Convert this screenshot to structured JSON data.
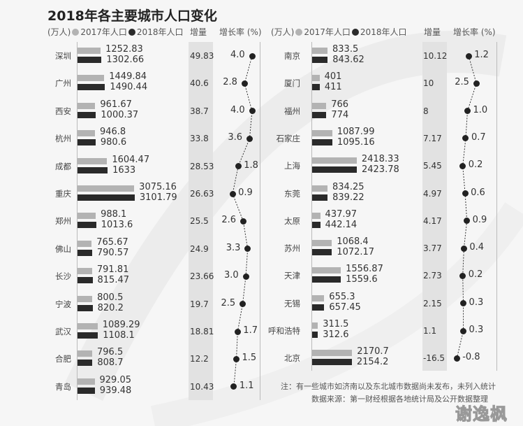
{
  "chart_data": {
    "type": "bar",
    "title": "2018年各主要城市人口变化",
    "unit_label": "(万人)",
    "legend": {
      "s2017": "2017年人口",
      "s2018": "2018年人口",
      "position": "top"
    },
    "column_headers": {
      "increase": "增量",
      "growth_rate": "增长率 (%)"
    },
    "colors": {
      "s2017": "#b3b3b3",
      "s2018": "#2a2a2a",
      "band": "#e2e2e2"
    },
    "panels": [
      {
        "rows": [
          {
            "city": "深圳",
            "p2017": "1252.83",
            "p2018": "1302.66",
            "increase": "49.83",
            "growth": "4.0"
          },
          {
            "city": "广州",
            "p2017": "1449.84",
            "p2018": "1490.44",
            "increase": "40.6",
            "growth": "2.8"
          },
          {
            "city": "西安",
            "p2017": "961.67",
            "p2018": "1000.37",
            "increase": "38.7",
            "growth": "4.0"
          },
          {
            "city": "杭州",
            "p2017": "946.8",
            "p2018": "980.6",
            "increase": "33.8",
            "growth": "3.6"
          },
          {
            "city": "成都",
            "p2017": "1604.47",
            "p2018": "1633",
            "increase": "28.53",
            "growth": "1.8"
          },
          {
            "city": "重庆",
            "p2017": "3075.16",
            "p2018": "3101.79",
            "increase": "26.63",
            "growth": "0.9"
          },
          {
            "city": "郑州",
            "p2017": "988.1",
            "p2018": "1013.6",
            "increase": "25.5",
            "growth": "2.6"
          },
          {
            "city": "佛山",
            "p2017": "765.67",
            "p2018": "790.57",
            "increase": "24.9",
            "growth": "3.3"
          },
          {
            "city": "长沙",
            "p2017": "791.81",
            "p2018": "815.47",
            "increase": "23.66",
            "growth": "3.0"
          },
          {
            "city": "宁波",
            "p2017": "800.5",
            "p2018": "820.2",
            "increase": "19.7",
            "growth": "2.5"
          },
          {
            "city": "武汉",
            "p2017": "1089.29",
            "p2018": "1108.1",
            "increase": "18.81",
            "growth": "1.7"
          },
          {
            "city": "合肥",
            "p2017": "796.5",
            "p2018": "808.7",
            "increase": "12.2",
            "growth": "1.5"
          },
          {
            "city": "青岛",
            "p2017": "929.05",
            "p2018": "939.48",
            "increase": "10.43",
            "growth": "1.1"
          }
        ]
      },
      {
        "rows": [
          {
            "city": "南京",
            "p2017": "833.5",
            "p2018": "843.62",
            "increase": "10.12",
            "growth": "1.2"
          },
          {
            "city": "厦门",
            "p2017": "401",
            "p2018": "411",
            "increase": "10",
            "growth": "2.5"
          },
          {
            "city": "福州",
            "p2017": "766",
            "p2018": "774",
            "increase": "8",
            "growth": "1.0"
          },
          {
            "city": "石家庄",
            "p2017": "1087.99",
            "p2018": "1095.16",
            "increase": "7.17",
            "growth": "0.7"
          },
          {
            "city": "上海",
            "p2017": "2418.33",
            "p2018": "2423.78",
            "increase": "5.45",
            "growth": "0.2"
          },
          {
            "city": "东莞",
            "p2017": "834.25",
            "p2018": "839.22",
            "increase": "4.97",
            "growth": "0.6"
          },
          {
            "city": "太原",
            "p2017": "437.97",
            "p2018": "442.14",
            "increase": "4.17",
            "growth": "0.9"
          },
          {
            "city": "苏州",
            "p2017": "1068.4",
            "p2018": "1072.17",
            "increase": "3.77",
            "growth": "0.4"
          },
          {
            "city": "天津",
            "p2017": "1556.87",
            "p2018": "1559.6",
            "increase": "2.73",
            "growth": "0.2"
          },
          {
            "city": "无锡",
            "p2017": "655.3",
            "p2018": "657.45",
            "increase": "2.15",
            "growth": "0.3"
          },
          {
            "city": "呼和浩特",
            "p2017": "311.5",
            "p2018": "312.6",
            "increase": "1.1",
            "growth": "0.3"
          },
          {
            "city": "北京",
            "p2017": "2170.7",
            "p2018": "2154.2",
            "increase": "-16.5",
            "growth": "-0.8"
          }
        ]
      }
    ],
    "note": "注：有一些城市如济南以及东北城市数据尚未发布，未列入统计",
    "source": "数据来源：第一财经根据各地统计局及公开数据整理"
  },
  "watermark": "谢逸枫"
}
